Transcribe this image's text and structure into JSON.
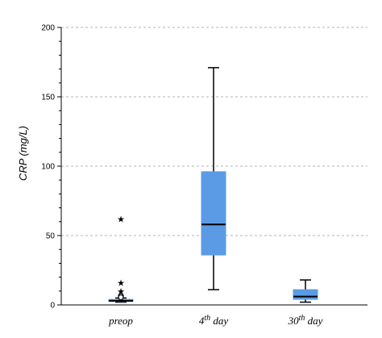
{
  "chart_data": {
    "type": "boxplot",
    "ylabel": "CRP (mg/L)",
    "ylim": [
      0,
      200
    ],
    "yticks": [
      "0",
      "50",
      "100",
      "150",
      "200"
    ],
    "grid": true,
    "box_color": "#5b9be6",
    "categories": [
      {
        "base": "preop",
        "sup": "",
        "suffix": ""
      },
      {
        "base": "4",
        "sup": "th",
        "suffix": " day"
      },
      {
        "base": "30",
        "sup": "th",
        "suffix": " day"
      }
    ],
    "boxes": [
      {
        "min": 2,
        "q1": 2.5,
        "median": 3,
        "q3": 4,
        "max": 5,
        "outliers": [
          {
            "value": 62,
            "marker": "extreme"
          },
          {
            "value": 16,
            "marker": "extreme"
          },
          {
            "value": 10,
            "marker": "extreme"
          },
          {
            "value": 6.5,
            "marker": "outlier"
          },
          {
            "value": 5.5,
            "marker": "outlier"
          }
        ]
      },
      {
        "min": 11,
        "q1": 36,
        "median": 58,
        "q3": 96,
        "max": 171,
        "outliers": []
      },
      {
        "min": 2,
        "q1": 4,
        "median": 6,
        "q3": 11,
        "max": 18,
        "outliers": []
      }
    ]
  }
}
